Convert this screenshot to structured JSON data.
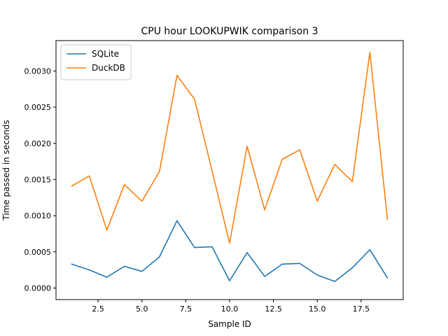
{
  "chart_data": {
    "type": "line",
    "title": "CPU hour LOOKUPWIK comparison 3",
    "xlabel": "Sample ID",
    "ylabel": "Time passed in seconds",
    "xlim": [
      0.1,
      19.9
    ],
    "ylim": [
      -0.00016,
      0.00342
    ],
    "xticks": [
      2.5,
      5.0,
      7.5,
      10.0,
      12.5,
      15.0,
      17.5
    ],
    "xtick_labels": [
      "2.5",
      "5.0",
      "7.5",
      "10.0",
      "12.5",
      "15.0",
      "17.5"
    ],
    "yticks": [
      0.0,
      0.0005,
      0.001,
      0.0015,
      0.002,
      0.0025,
      0.003
    ],
    "ytick_labels": [
      "0.0000",
      "0.0005",
      "0.0010",
      "0.0015",
      "0.0020",
      "0.0025",
      "0.0030"
    ],
    "grid": false,
    "legend_position": "top-left",
    "x": [
      1,
      2,
      3,
      4,
      5,
      6,
      7,
      8,
      9,
      10,
      11,
      12,
      13,
      14,
      15,
      16,
      17,
      18,
      19
    ],
    "series": [
      {
        "name": "SQLite",
        "color": "#1f77b4",
        "values": [
          0.00033,
          0.00025,
          0.00015,
          0.0003,
          0.00023,
          0.00043,
          0.00093,
          0.00056,
          0.00057,
          0.0001,
          0.00049,
          0.00016,
          0.00033,
          0.00034,
          0.00018,
          9e-05,
          0.00028,
          0.00053,
          0.00014
        ]
      },
      {
        "name": "DuckDB",
        "color": "#ff7f0e",
        "values": [
          0.00141,
          0.00155,
          0.0008,
          0.00143,
          0.0012,
          0.00161,
          0.00294,
          0.00261,
          0.00162,
          0.00062,
          0.00196,
          0.00108,
          0.00178,
          0.00191,
          0.0012,
          0.00171,
          0.00147,
          0.00326,
          0.00095
        ]
      }
    ]
  }
}
